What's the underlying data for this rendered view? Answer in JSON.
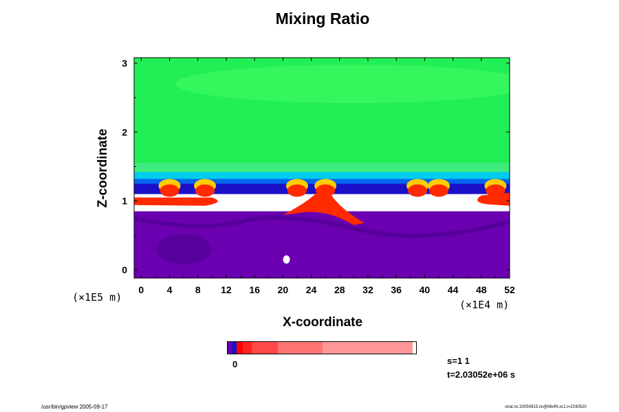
{
  "title": "Mixing Ratio",
  "chart_data": {
    "type": "heatmap",
    "title": "Mixing Ratio",
    "xlabel": "X-coordinate",
    "ylabel": "Z-coordinate",
    "x_scale_label": "(×1E4 m)",
    "y_scale_label": "(×1E5 m)",
    "xlim": [
      -1,
      52
    ],
    "ylim": [
      -0.12,
      3.08
    ],
    "x_ticks": [
      0,
      4,
      8,
      12,
      16,
      20,
      24,
      28,
      32,
      36,
      40,
      44,
      48,
      52
    ],
    "y_ticks": [
      0,
      1,
      2,
      3
    ],
    "layers": [
      {
        "name": "upper",
        "z_range": [
          1.55,
          3.08
        ],
        "color": "#22ee55"
      },
      {
        "name": "transition",
        "z_range": [
          1.2,
          1.55
        ],
        "color": "#00ccee"
      },
      {
        "name": "dark band",
        "z_range": [
          1.1,
          1.3
        ],
        "color": "#1a10c8"
      },
      {
        "name": "clear",
        "z_range": [
          0.8,
          1.05
        ],
        "color": "#ffffff"
      },
      {
        "name": "lower",
        "z_range": [
          -0.12,
          0.85
        ],
        "color": "#6a00b0"
      }
    ],
    "plumes_x": [
      4,
      9,
      22,
      26,
      39,
      42,
      50
    ],
    "colorbar": {
      "tick_label": "0",
      "colors": [
        "#6a00b0",
        "#1a10c8",
        "#ff0000",
        "#ff2222",
        "#ff4848",
        "#ff7474",
        "#ff9898"
      ]
    }
  },
  "info": {
    "s": "s=1 1",
    "t": "t=2.03052e+06 s"
  },
  "footer": {
    "left": "/usr/bin/gpview 2005-09-17",
    "right": "strat.nc:20050915.nc@MixRt,xc1,t=2030520"
  }
}
